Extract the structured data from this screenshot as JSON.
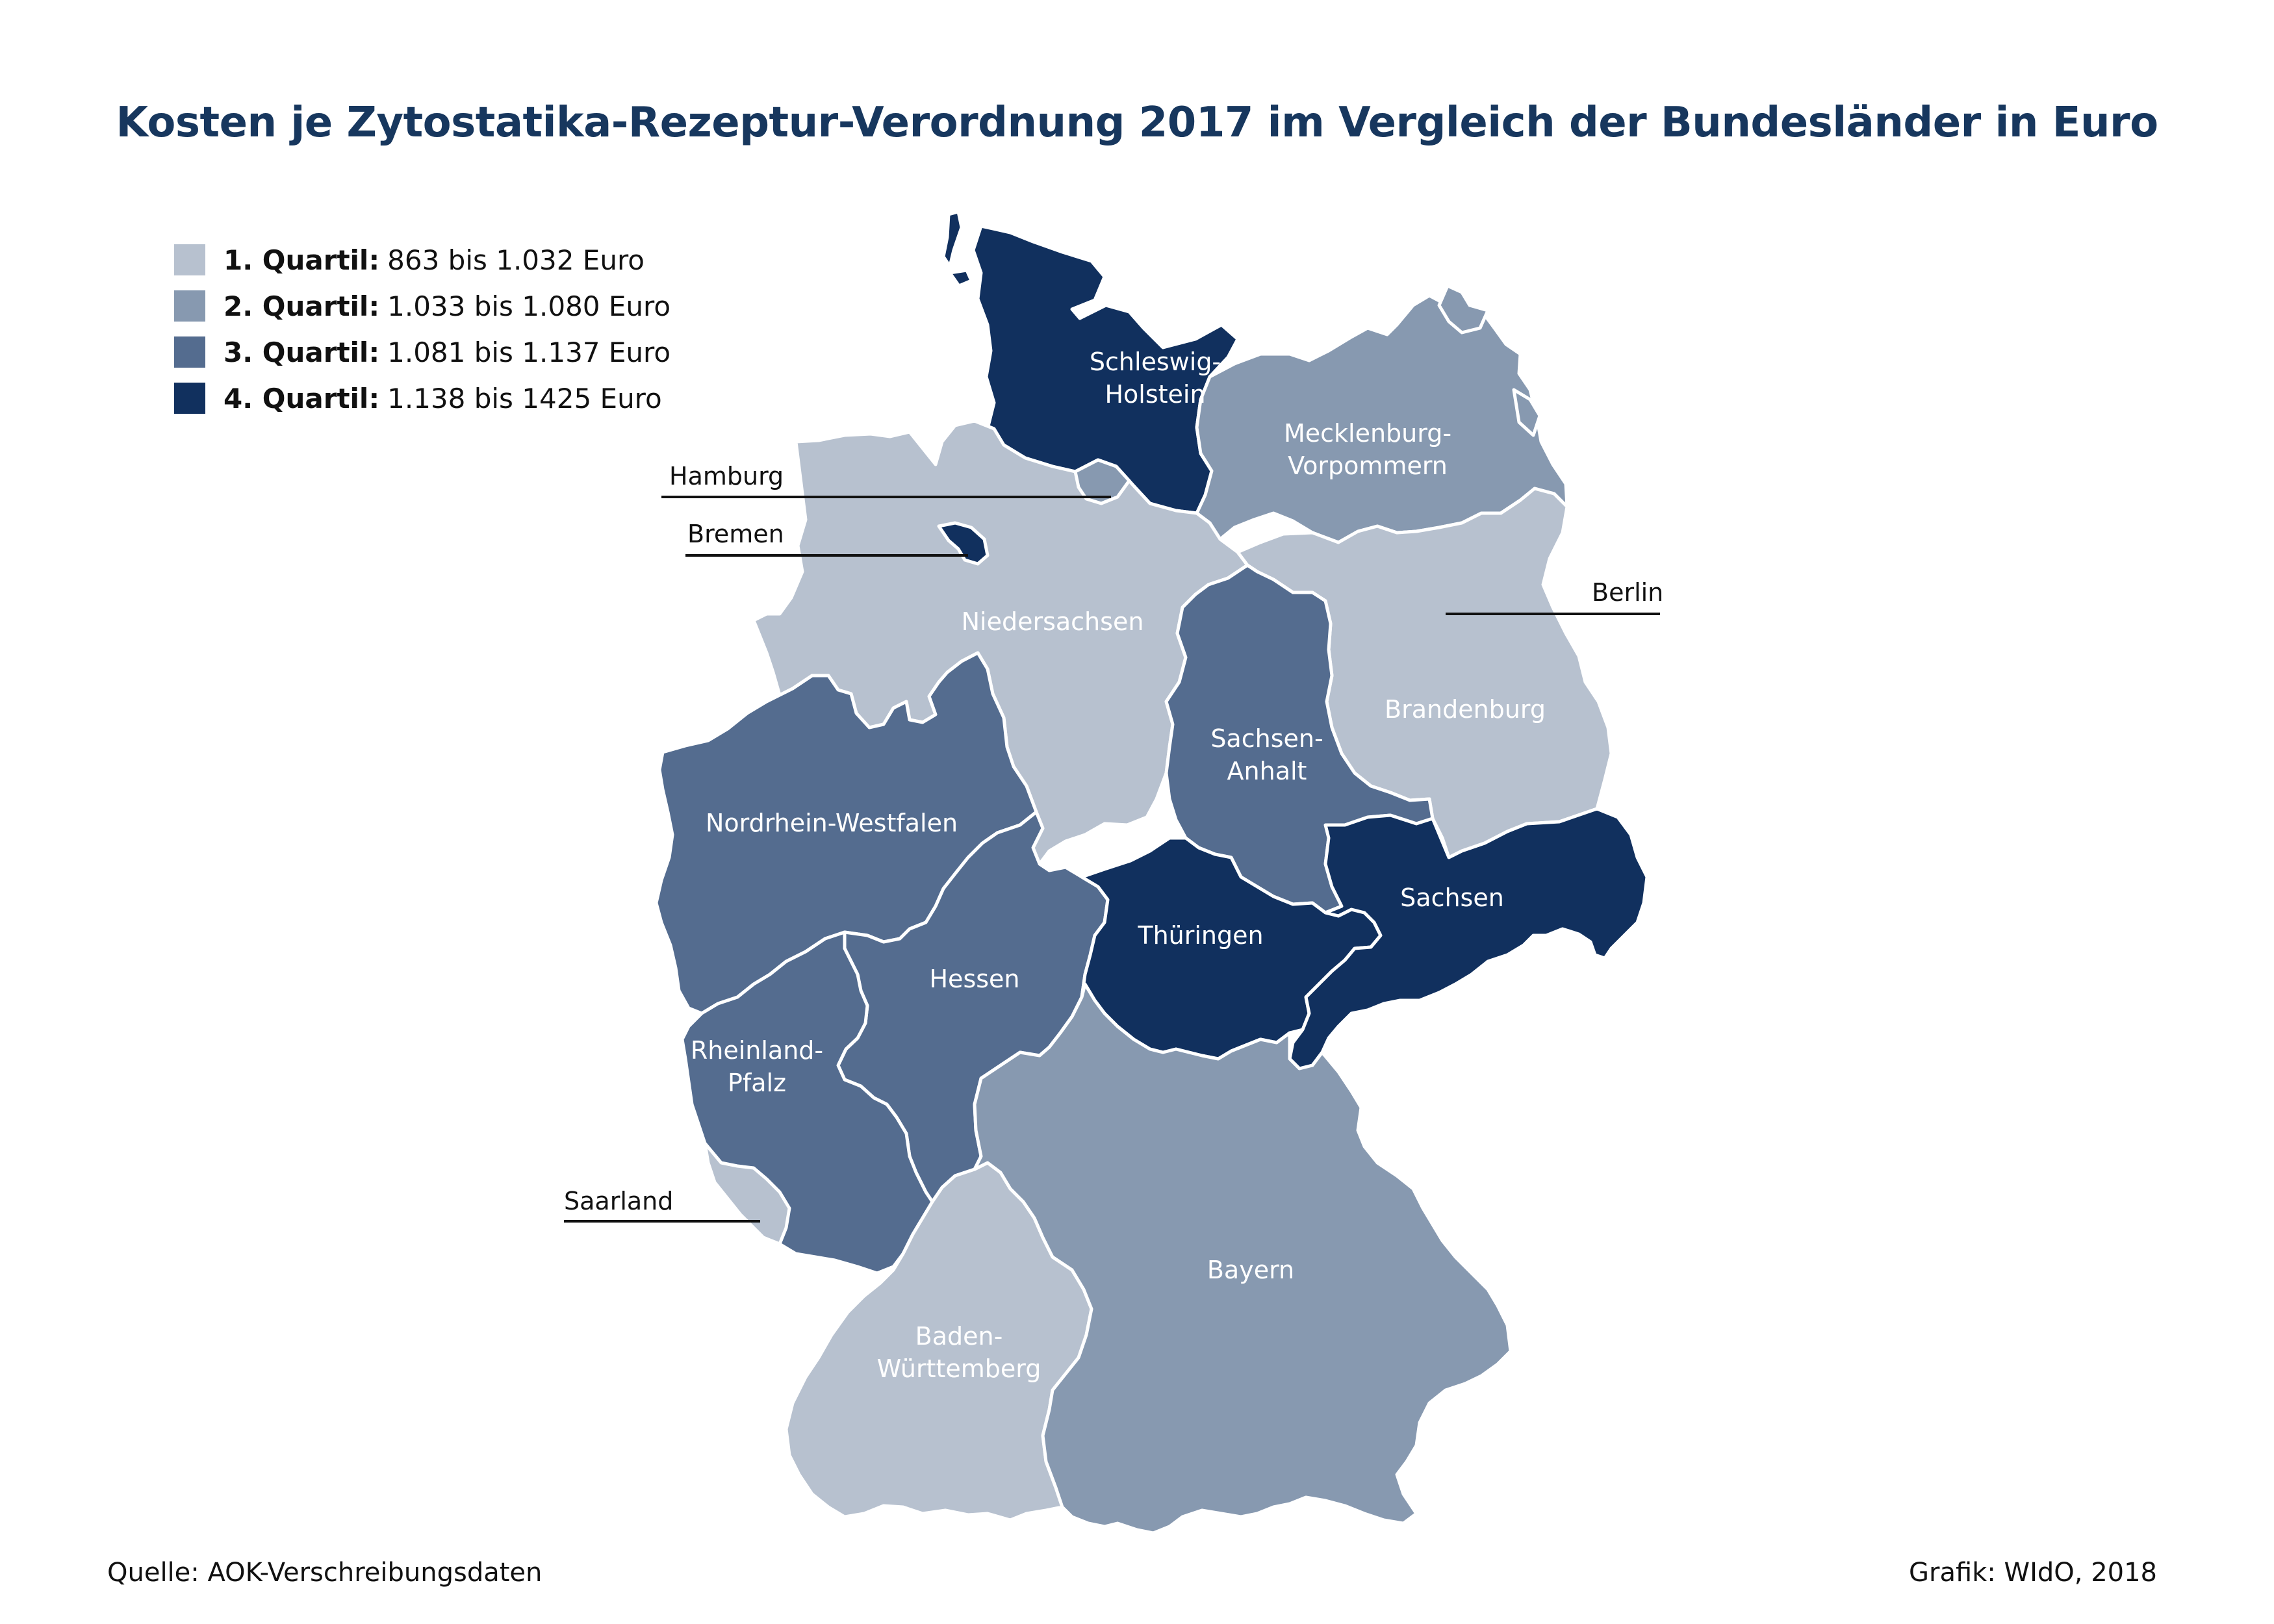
{
  "title": "Kosten je Zytostatika-Rezeptur-Verordnung 2017 im Vergleich der Bundesländer in Euro",
  "legend": [
    {
      "label": "1. Quartil:",
      "range": "863 bis 1.032 Euro",
      "color": "#b7c1cf"
    },
    {
      "label": "2. Quartil:",
      "range": "1.033 bis 1.080 Euro",
      "color": "#8799b0"
    },
    {
      "label": "3. Quartil:",
      "range": "1.081 bis 1.137 Euro",
      "color": "#546c8f"
    },
    {
      "label": "4. Quartil:",
      "range": "1.138 bis 1425 Euro",
      "color": "#11305e"
    }
  ],
  "states": {
    "schleswig_holstein": {
      "line1": "Schleswig-",
      "line2": "Holstein",
      "quartile": 4
    },
    "mecklenburg_vorpommern": {
      "line1": "Mecklenburg-",
      "line2": "Vorpommern",
      "quartile": 2
    },
    "niedersachsen": {
      "line1": "Niedersachsen",
      "quartile": 1
    },
    "brandenburg": {
      "line1": "Brandenburg",
      "quartile": 1
    },
    "sachsen_anhalt": {
      "line1": "Sachsen-",
      "line2": "Anhalt",
      "quartile": 3
    },
    "nordrhein_westfalen": {
      "line1": "Nordrhein-Westfalen",
      "quartile": 3
    },
    "sachsen": {
      "line1": "Sachsen",
      "quartile": 4
    },
    "thueringen": {
      "line1": "Thüringen",
      "quartile": 4
    },
    "hessen": {
      "line1": "Hessen",
      "quartile": 3
    },
    "rheinland_pfalz": {
      "line1": "Rheinland-",
      "line2": "Pfalz",
      "quartile": 3
    },
    "bayern": {
      "line1": "Bayern",
      "quartile": 2
    },
    "baden_wuerttemberg": {
      "line1": "Baden-",
      "line2": "Württemberg",
      "quartile": 1
    },
    "hamburg": {
      "line1": "Hamburg",
      "quartile": 2
    },
    "bremen": {
      "line1": "Bremen",
      "quartile": 4
    },
    "berlin": {
      "line1": "Berlin",
      "quartile": 2
    },
    "saarland": {
      "line1": "Saarland",
      "quartile": 1
    }
  },
  "source": "Quelle: AOK-Verschreibungsdaten",
  "credit": "Grafik: WIdO, 2018"
}
